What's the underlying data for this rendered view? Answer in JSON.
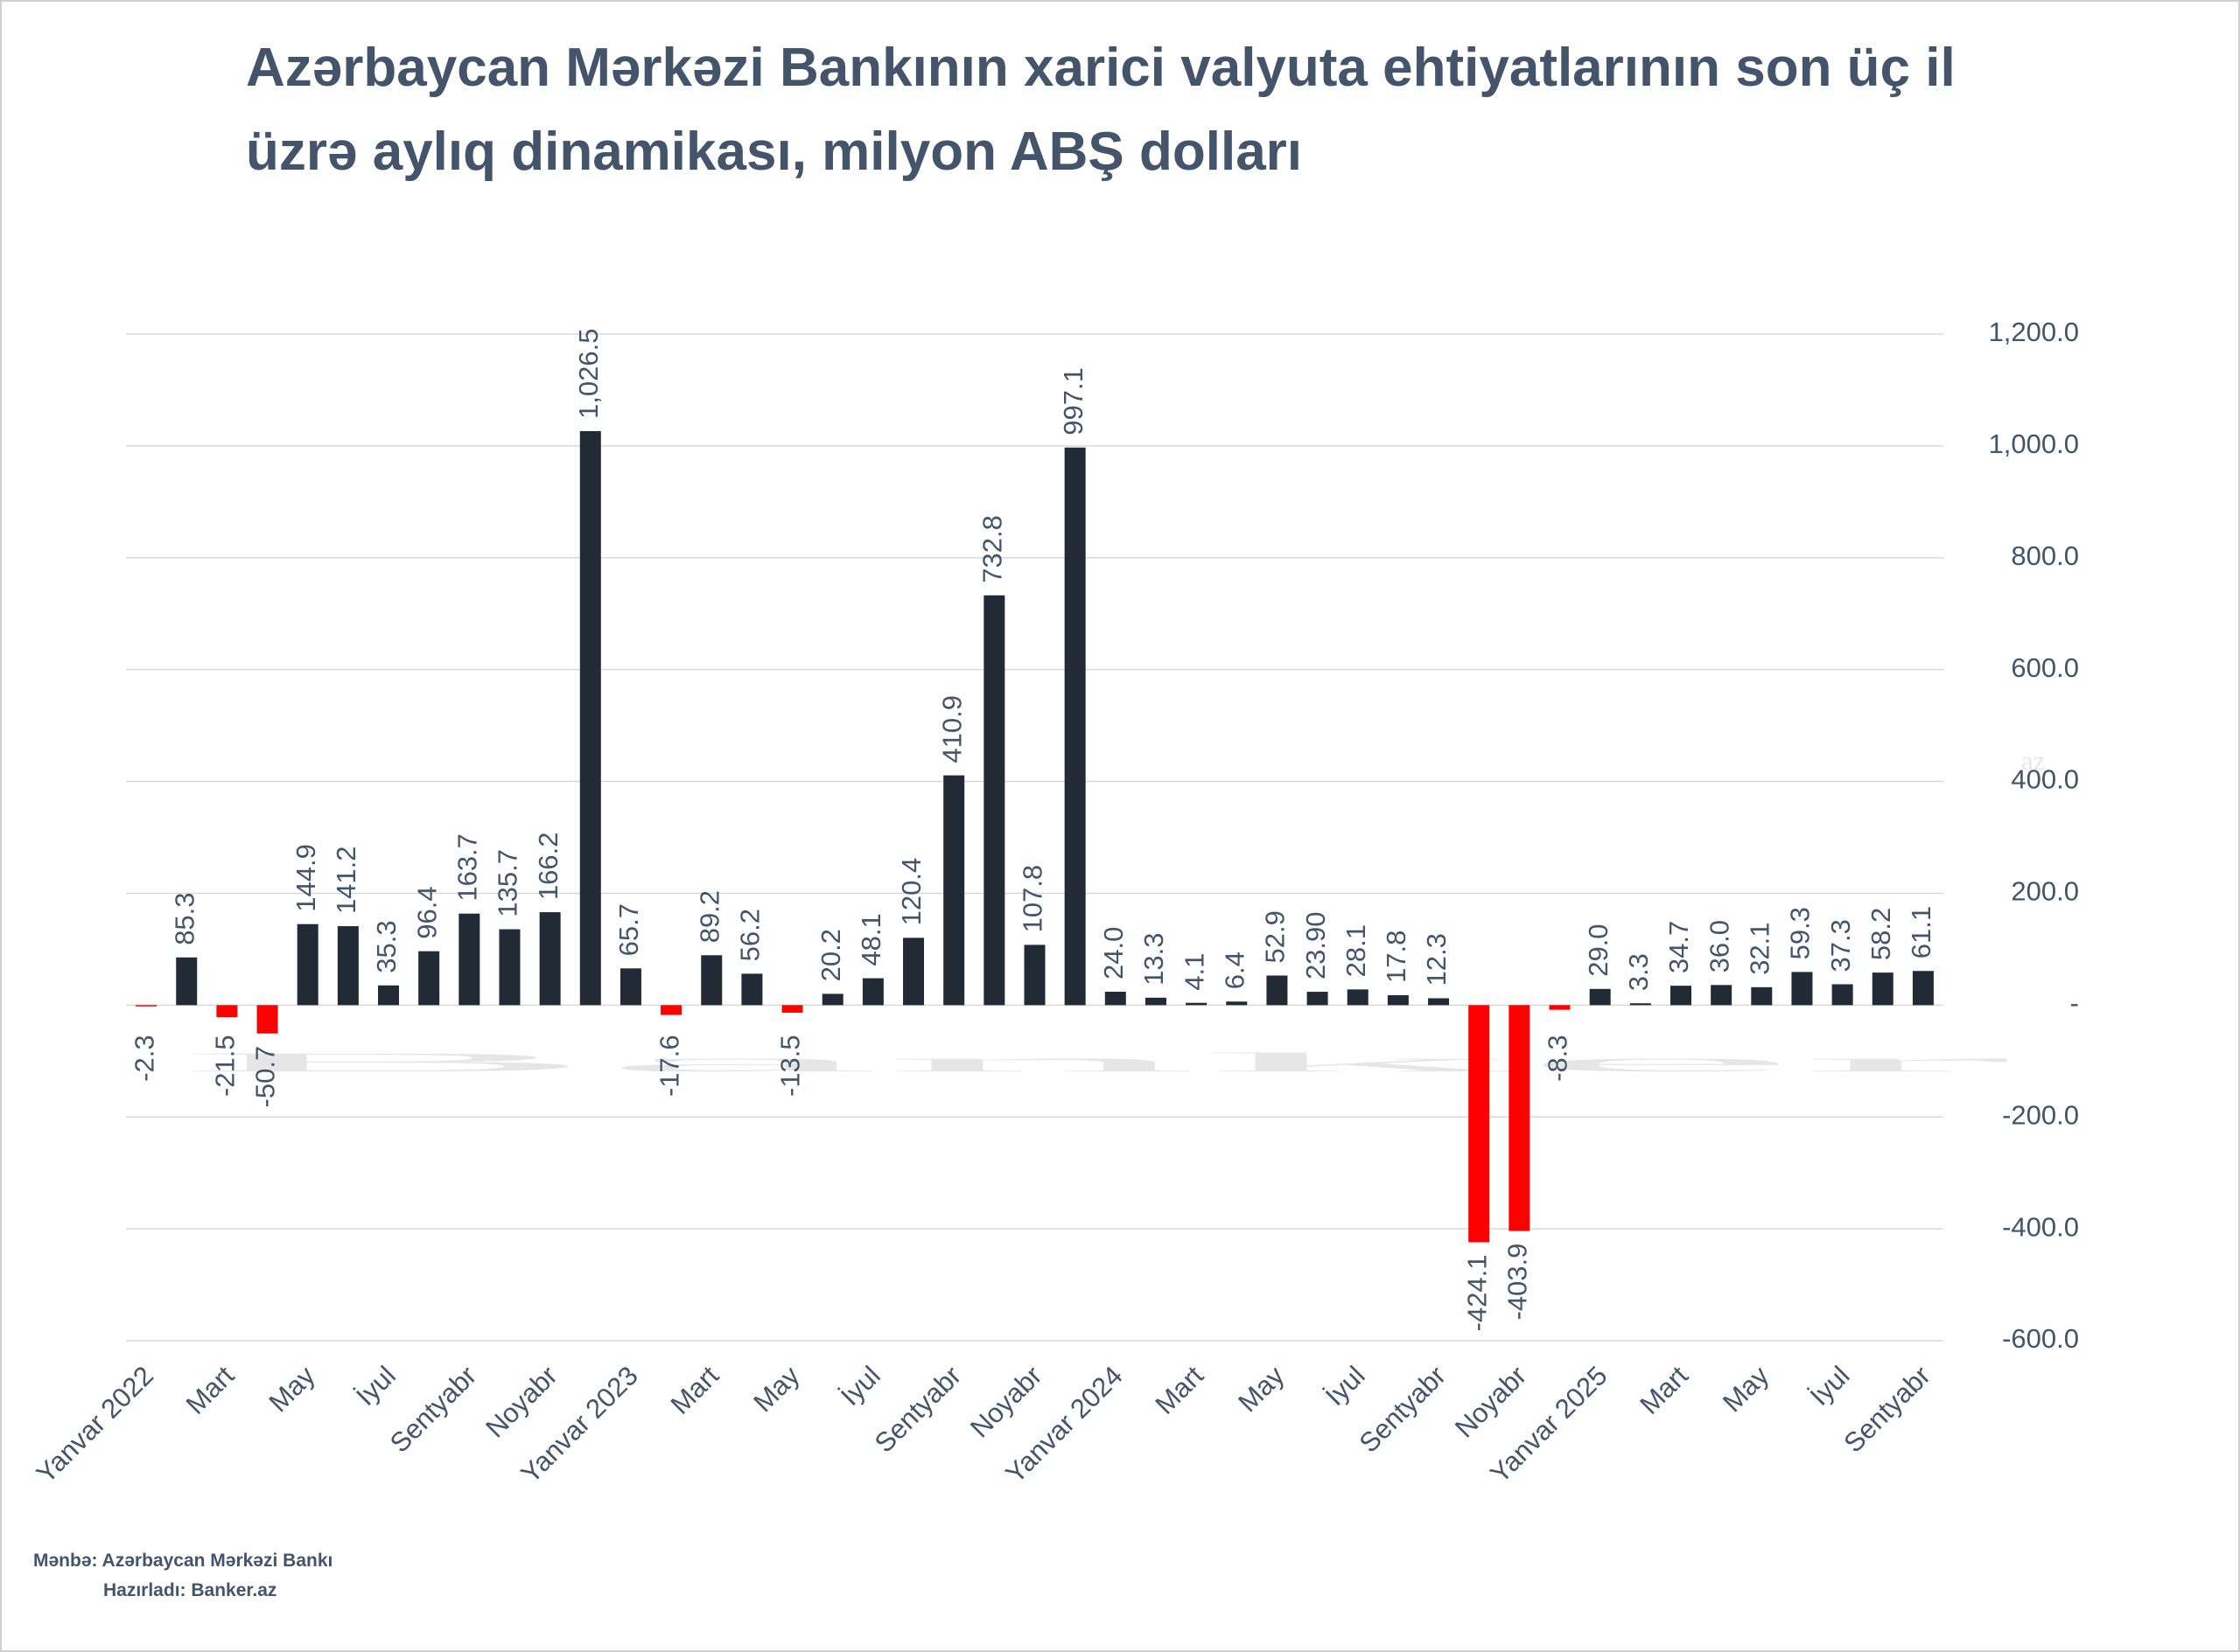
{
  "chart_data": {
    "type": "bar",
    "title": "Azərbaycan Mərkəzi Bankının xarici valyuta ehtiyatlarının son üç il üzrə aylıq dinamikası, milyon ABŞ dolları",
    "watermark": "Banker",
    "watermark_sup": "az",
    "source": "Mənbə: Azərbaycan Mərkəzi Bankı",
    "prepared_by": "Hazırladı: Banker.az",
    "categories": [
      "Yanvar 2022",
      null,
      "Mart",
      null,
      "May",
      null,
      "İyul",
      null,
      "Sentyabr",
      null,
      "Noyabr",
      null,
      "Yanvar 2023",
      null,
      "Mart",
      null,
      "May",
      null,
      "İyul",
      null,
      "Sentyabr",
      null,
      "Noyabr",
      null,
      "Yanvar 2024",
      null,
      "Mart",
      null,
      "May",
      null,
      "İyul",
      null,
      "Sentyabr",
      null,
      "Noyabr",
      null,
      "Yanvar 2025",
      null,
      "Mart",
      null,
      "May",
      null,
      "İyul",
      null,
      "Sentyabr"
    ],
    "values": [
      -2.3,
      85.3,
      -21.5,
      -50.7,
      144.9,
      141.2,
      35.3,
      96.4,
      163.7,
      135.7,
      166.2,
      1026.5,
      65.7,
      -17.6,
      89.2,
      56.2,
      -13.5,
      20.2,
      48.1,
      120.4,
      410.9,
      732.8,
      107.8,
      997.1,
      24.0,
      13.3,
      4.1,
      6.4,
      52.9,
      23.9,
      28.1,
      17.8,
      12.3,
      -424.1,
      -403.9,
      -8.3,
      29.0,
      3.3,
      34.7,
      36.0,
      32.1,
      59.3,
      37.3,
      58.2,
      61.1
    ],
    "value_labels": [
      "-2.3",
      "85.3",
      "-21.5",
      "-50.7",
      "144.9",
      "141.2",
      "35.3",
      "96.4",
      "163.7",
      "135.7",
      "166.2",
      "1,026.5",
      "65.7",
      "-17.6",
      "89.2",
      "56.2",
      "-13.5",
      "20.2",
      "48.1",
      "120.4",
      "410.9",
      "732.8",
      "107.8",
      "997.1",
      "24.0",
      "13.3",
      "4.1",
      "6.4",
      "52.9",
      "23.90",
      "28.1",
      "17.8",
      "12.3",
      "-424.1",
      "-403.9",
      "-8.3",
      "29.0",
      "3.3",
      "34.7",
      "36.0",
      "32.1",
      "59.3",
      "37.3",
      "58.2",
      "61.1"
    ],
    "color": "#222a35",
    "negative_color": "#ff0000",
    "ylim": [
      -600,
      1200
    ],
    "yticks": [
      {
        "value": -600,
        "label": "-600.0"
      },
      {
        "value": -400,
        "label": "-400.0"
      },
      {
        "value": -200,
        "label": "-200.0"
      },
      {
        "value": 0,
        "label": "-"
      },
      {
        "value": 200,
        "label": "200.0"
      },
      {
        "value": 400,
        "label": "400.0"
      },
      {
        "value": 600,
        "label": "600.0"
      },
      {
        "value": 800,
        "label": "800.0"
      },
      {
        "value": 1000,
        "label": "1,000.0"
      },
      {
        "value": 1200,
        "label": "1,200.0"
      }
    ],
    "grid": true,
    "yaxis_side": "right"
  }
}
